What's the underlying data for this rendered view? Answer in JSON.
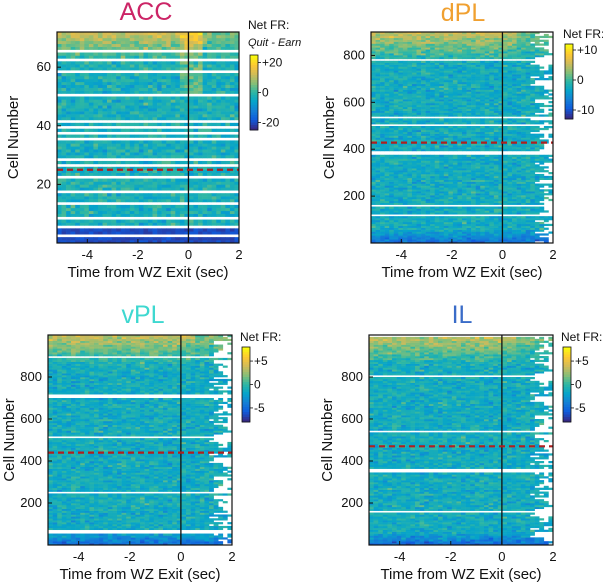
{
  "chart_data": [
    {
      "type": "heatmap",
      "title": "ACC",
      "title_color": "#cc2466",
      "xlabel": "Time from WZ Exit (sec)",
      "ylabel": "Cell Number",
      "xlim": [
        -5.2,
        2
      ],
      "ylim": [
        0,
        72
      ],
      "xticks": [
        -4,
        -2,
        0,
        2
      ],
      "xtick_labels": [
        "-4",
        "-2",
        "0",
        "2"
      ],
      "yticks": [
        20,
        40,
        60
      ],
      "ytick_labels": [
        "20",
        "40",
        "60"
      ],
      "event_line_x": 0,
      "divider_cell": 25,
      "colorbar": {
        "title": "Net FR:",
        "subtitle": "Quit - Earn",
        "range": [
          -25,
          25
        ],
        "tick_values": [
          20,
          0,
          -20
        ],
        "tick_labels": [
          "+20",
          "0",
          "-20"
        ]
      }
    },
    {
      "type": "heatmap",
      "title": "dPL",
      "title_color": "#f0a030",
      "xlabel": "Time from WZ Exit (sec)",
      "ylabel": "Cell Number",
      "xlim": [
        -5.2,
        2
      ],
      "ylim": [
        0,
        900
      ],
      "xticks": [
        -4,
        -2,
        0,
        2
      ],
      "xtick_labels": [
        "-4",
        "-2",
        "0",
        "2"
      ],
      "yticks": [
        200,
        400,
        600,
        800
      ],
      "ytick_labels": [
        "200",
        "400",
        "600",
        "800"
      ],
      "event_line_x": 0,
      "divider_cell": 428,
      "colorbar": {
        "title": "Net FR:",
        "range": [
          -13,
          12
        ],
        "tick_values": [
          10,
          0,
          -10
        ],
        "tick_labels": [
          "+10",
          "0",
          "-10"
        ]
      }
    },
    {
      "type": "heatmap",
      "title": "vPL",
      "title_color": "#3ed8d0",
      "xlabel": "Time from WZ Exit (sec)",
      "ylabel": "Cell Number",
      "xlim": [
        -5.2,
        2
      ],
      "ylim": [
        0,
        1000
      ],
      "xticks": [
        -4,
        -2,
        0,
        2
      ],
      "xtick_labels": [
        "-4",
        "-2",
        "0",
        "2"
      ],
      "yticks": [
        200,
        400,
        600,
        800
      ],
      "ytick_labels": [
        "200",
        "400",
        "600",
        "800"
      ],
      "event_line_x": 0,
      "divider_cell": 440,
      "colorbar": {
        "title": "Net FR:",
        "range": [
          -8,
          8
        ],
        "tick_values": [
          5,
          0,
          -5
        ],
        "tick_labels": [
          "+5",
          "0",
          "-5"
        ]
      }
    },
    {
      "type": "heatmap",
      "title": "IL",
      "title_color": "#3a6cc8",
      "xlabel": "Time from WZ Exit (sec)",
      "ylabel": "Cell Number",
      "xlim": [
        -5.2,
        2
      ],
      "ylim": [
        0,
        1000
      ],
      "xticks": [
        -4,
        -2,
        0,
        2
      ],
      "xtick_labels": [
        "-4",
        "-2",
        "0",
        "2"
      ],
      "yticks": [
        200,
        400,
        600,
        800
      ],
      "ytick_labels": [
        "200",
        "400",
        "600",
        "800"
      ],
      "event_line_x": 0,
      "divider_cell": 470,
      "colorbar": {
        "title": "Net FR:",
        "range": [
          -8,
          8
        ],
        "tick_values": [
          5,
          0,
          -5
        ],
        "tick_labels": [
          "+5",
          "0",
          "-5"
        ]
      }
    }
  ]
}
